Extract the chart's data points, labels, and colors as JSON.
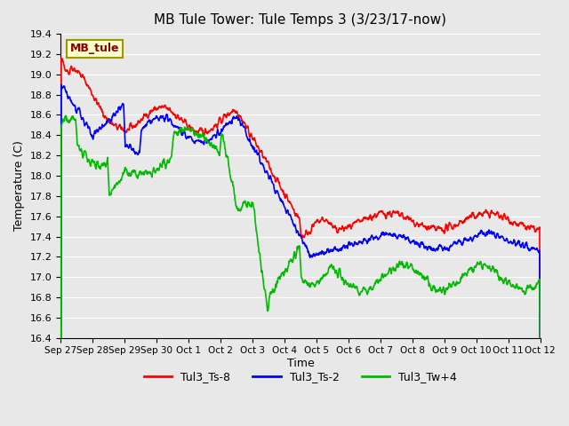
{
  "title": "MB Tule Tower: Tule Temps 3 (3/23/17-now)",
  "xlabel": "Time",
  "ylabel": "Temperature (C)",
  "ylim": [
    16.4,
    19.4
  ],
  "yticks": [
    16.4,
    16.6,
    16.8,
    17.0,
    17.2,
    17.4,
    17.6,
    17.8,
    18.0,
    18.2,
    18.4,
    18.6,
    18.8,
    19.0,
    19.2,
    19.4
  ],
  "xtick_labels": [
    "Sep 27",
    "Sep 28",
    "Sep 29",
    "Sep 30",
    "Oct 1",
    "Oct 2",
    "Oct 3",
    "Oct 4",
    "Oct 5",
    "Oct 6",
    "Oct 7",
    "Oct 8",
    "Oct 9",
    "Oct 10",
    "Oct 11",
    "Oct 12"
  ],
  "colors": {
    "Tul3_Ts-8": "#ff0000",
    "Tul3_Ts-2": "#0000ff",
    "Tul3_Tw+4": "#00bb00"
  },
  "legend_label": "MB_tule",
  "legend_bg": "#ffffcc",
  "legend_border": "#999900",
  "bg_color": "#e8e8e8",
  "plot_bg": "#e8e8e8",
  "grid_color": "#ffffff",
  "line_width": 1.2
}
